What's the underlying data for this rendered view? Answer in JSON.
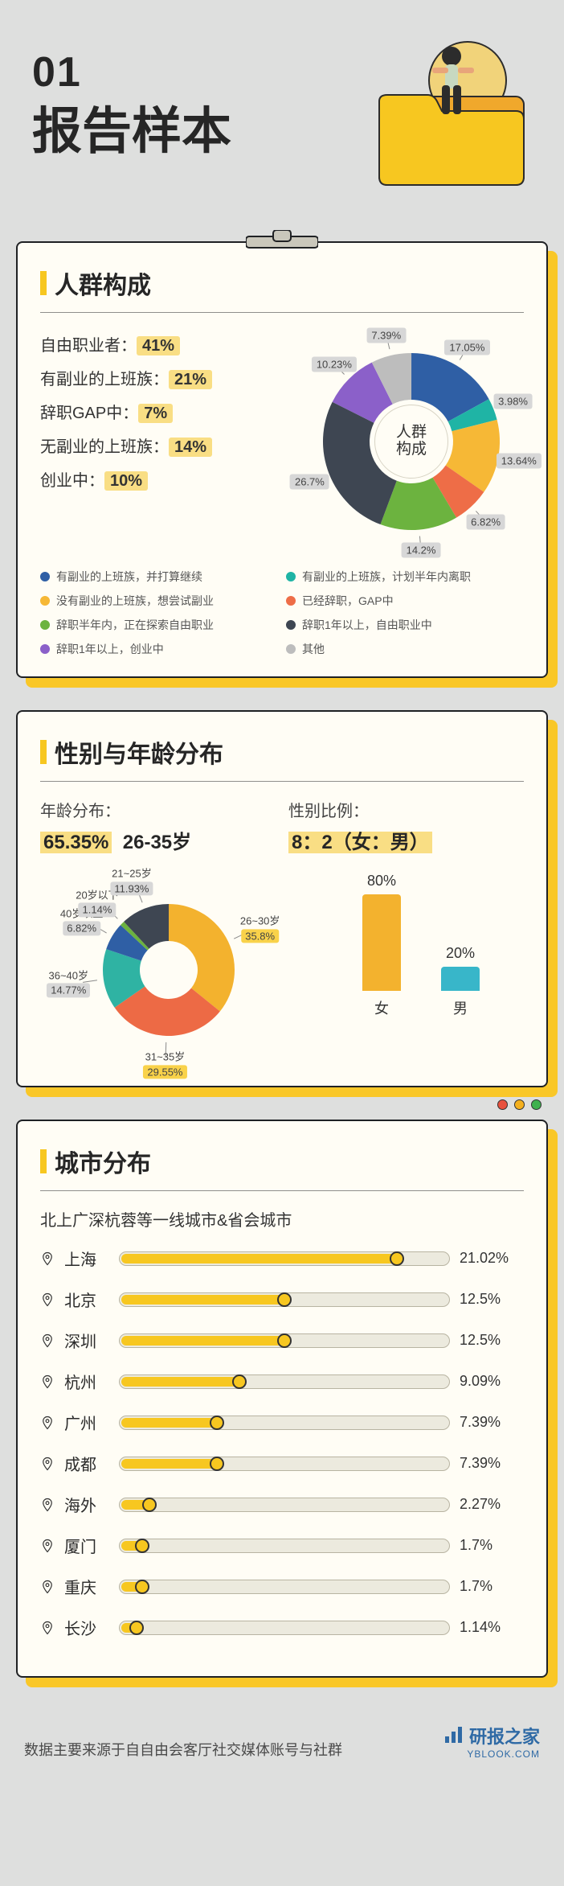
{
  "colors": {
    "page_bg": "#dedfde",
    "card_bg": "#fffdf5",
    "border": "#1f2124",
    "accent": "#f7c720",
    "shadow": "#f9c728",
    "highlight_bg": "#f9de84",
    "text": "#262626",
    "grey_label_bg": "#d7d7d7"
  },
  "header": {
    "index": "01",
    "title": "报告样本"
  },
  "section1": {
    "title": "人群构成",
    "summary": [
      {
        "label": "自由职业者：",
        "value": "41%"
      },
      {
        "label": "有副业的上班族：",
        "value": "21%"
      },
      {
        "label": "辞职GAP中：",
        "value": "7%"
      },
      {
        "label": "无副业的上班族：",
        "value": "14%"
      },
      {
        "label": "创业中：",
        "value": "10%"
      }
    ],
    "donut": {
      "center_text": "人群\n构成",
      "inner_radius": 52,
      "outer_radius": 110,
      "slices": [
        {
          "label": "17.05%",
          "value": 17.05,
          "color": "#2f5fa5"
        },
        {
          "label": "3.98%",
          "value": 3.98,
          "color": "#1fb4a5"
        },
        {
          "label": "13.64%",
          "value": 13.64,
          "color": "#f6b836"
        },
        {
          "label": "6.82%",
          "value": 6.82,
          "color": "#ee6d47"
        },
        {
          "label": "14.2%",
          "value": 14.2,
          "color": "#6cb33f"
        },
        {
          "label": "26.7%",
          "value": 26.7,
          "color": "#3e4652"
        },
        {
          "label": "10.23%",
          "value": 10.23,
          "color": "#8b60c9"
        },
        {
          "label": "7.39%",
          "value": 7.39,
          "color": "#bdbdbd"
        }
      ]
    },
    "legend": [
      {
        "color": "#2f5fa5",
        "text": "有副业的上班族，并打算继续"
      },
      {
        "color": "#1fb4a5",
        "text": "有副业的上班族，计划半年内离职"
      },
      {
        "color": "#f6b836",
        "text": "没有副业的上班族，想尝试副业"
      },
      {
        "color": "#ee6d47",
        "text": "已经辞职，GAP中"
      },
      {
        "color": "#6cb33f",
        "text": "辞职半年内，正在探索自由职业"
      },
      {
        "color": "#3e4652",
        "text": "辞职1年以上，自由职业中"
      },
      {
        "color": "#8b60c9",
        "text": "辞职1年以上，创业中"
      },
      {
        "color": "#bdbdbd",
        "text": "其他"
      }
    ]
  },
  "section2": {
    "title": "性别与年龄分布",
    "age_head": "年龄分布：",
    "age_big_pct": "65.35%",
    "age_big_range": "26-35岁",
    "gender_head": "性别比例：",
    "gender_big": "8：2（女：男）",
    "age_donut": {
      "inner_radius": 36,
      "outer_radius": 82,
      "slices": [
        {
          "name": "26~30岁",
          "pct": "35.8%",
          "value": 35.8,
          "color": "#f3b22e",
          "hl": true
        },
        {
          "name": "31~35岁",
          "pct": "29.55%",
          "value": 29.55,
          "color": "#ed6a45",
          "hl": true
        },
        {
          "name": "36~40岁",
          "pct": "14.77%",
          "value": 14.77,
          "color": "#2fb3a3",
          "hl": false
        },
        {
          "name": "40岁以上",
          "pct": "6.82%",
          "value": 6.82,
          "color": "#2f5fa5",
          "hl": false
        },
        {
          "name": "20岁以下",
          "pct": "1.14%",
          "value": 1.14,
          "color": "#6cb33f",
          "hl": false
        },
        {
          "name": "21~25岁",
          "pct": "11.93%",
          "value": 11.93,
          "color": "#3e4652",
          "hl": false
        }
      ]
    },
    "gender_bars": {
      "ymax": 100,
      "bars": [
        {
          "name": "女",
          "pct": "80%",
          "value": 80,
          "color": "#f3b22e"
        },
        {
          "name": "男",
          "pct": "20%",
          "value": 20,
          "color": "#38b6c9"
        }
      ]
    }
  },
  "section3": {
    "title": "城市分布",
    "subtitle": "北上广深杭蓉等一线城市&省会城市",
    "bar_max_pct": 25,
    "cities": [
      {
        "name": "上海",
        "pct_text": "21.02%",
        "value": 21.02
      },
      {
        "name": "北京",
        "pct_text": "12.5%",
        "value": 12.5
      },
      {
        "name": "深圳",
        "pct_text": "12.5%",
        "value": 12.5
      },
      {
        "name": "杭州",
        "pct_text": "9.09%",
        "value": 9.09
      },
      {
        "name": "广州",
        "pct_text": "7.39%",
        "value": 7.39
      },
      {
        "name": "成都",
        "pct_text": "7.39%",
        "value": 7.39
      },
      {
        "name": "海外",
        "pct_text": "2.27%",
        "value": 2.27
      },
      {
        "name": "厦门",
        "pct_text": "1.7%",
        "value": 1.7
      },
      {
        "name": "重庆",
        "pct_text": "1.7%",
        "value": 1.7
      },
      {
        "name": "长沙",
        "pct_text": "1.14%",
        "value": 1.14
      }
    ]
  },
  "footer": {
    "note": "数据主要来源于自自由会客厅社交媒体账号与社群",
    "brand": "研报之家",
    "brand_sub": "YBLOOK.COM"
  }
}
